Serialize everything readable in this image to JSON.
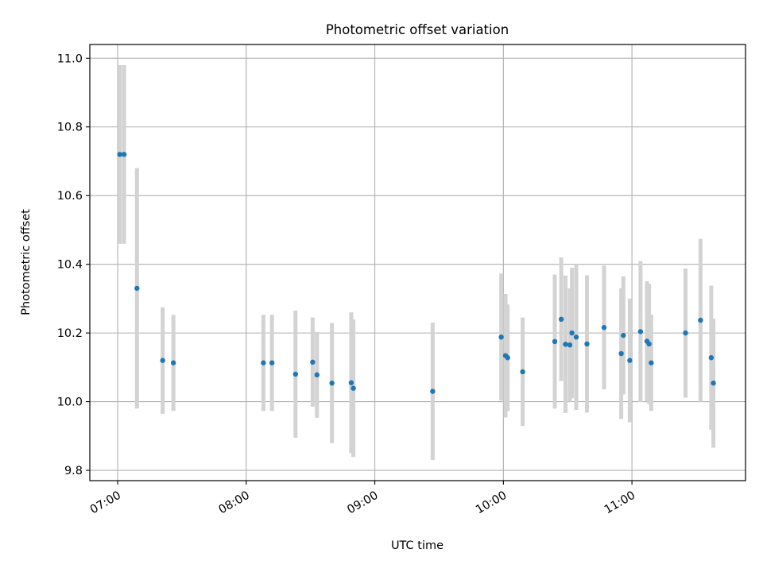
{
  "chart_data": {
    "type": "scatter",
    "title": "Photometric offset variation",
    "xlabel": "UTC time",
    "ylabel": "Photometric offset",
    "xlim": [
      "06:47",
      "11:53"
    ],
    "ylim": [
      9.77,
      11.04
    ],
    "grid": true,
    "x_ticks": [
      "07:00",
      "08:00",
      "09:00",
      "10:00",
      "11:00"
    ],
    "y_ticks": [
      "9.8",
      "10.0",
      "10.2",
      "10.4",
      "10.6",
      "10.8",
      "11.0"
    ],
    "colors": {
      "points": "#1f77b4",
      "errorbars": "#d3d3d3",
      "grid": "#b0b0b0"
    },
    "series": [
      {
        "points": [
          {
            "x": "07:01",
            "y": 10.72,
            "yerr": 0.26
          },
          {
            "x": "07:03",
            "y": 10.72,
            "yerr": 0.26
          },
          {
            "x": "07:09",
            "y": 10.33,
            "yerr": 0.35
          },
          {
            "x": "07:21",
            "y": 10.12,
            "yerr": 0.155
          },
          {
            "x": "07:26",
            "y": 10.113,
            "yerr": 0.14
          },
          {
            "x": "08:08",
            "y": 10.113,
            "yerr": 0.14
          },
          {
            "x": "08:12",
            "y": 10.113,
            "yerr": 0.14
          },
          {
            "x": "08:23",
            "y": 10.08,
            "yerr": 0.185
          },
          {
            "x": "08:31",
            "y": 10.115,
            "yerr": 0.13
          },
          {
            "x": "08:33",
            "y": 10.078,
            "yerr": 0.125
          },
          {
            "x": "08:40",
            "y": 10.054,
            "yerr": 0.175
          },
          {
            "x": "08:49",
            "y": 10.055,
            "yerr": 0.205
          },
          {
            "x": "08:50",
            "y": 10.039,
            "yerr": 0.2
          },
          {
            "x": "09:27",
            "y": 10.03,
            "yerr": 0.2
          },
          {
            "x": "09:59",
            "y": 10.188,
            "yerr": 0.185
          },
          {
            "x": "10:01",
            "y": 10.134,
            "yerr": 0.18
          },
          {
            "x": "10:02",
            "y": 10.128,
            "yerr": 0.155
          },
          {
            "x": "10:09",
            "y": 10.087,
            "yerr": 0.158
          },
          {
            "x": "10:24",
            "y": 10.175,
            "yerr": 0.195
          },
          {
            "x": "10:27",
            "y": 10.24,
            "yerr": 0.18
          },
          {
            "x": "10:29",
            "y": 10.167,
            "yerr": 0.2
          },
          {
            "x": "10:31",
            "y": 10.165,
            "yerr": 0.165
          },
          {
            "x": "10:32",
            "y": 10.2,
            "yerr": 0.19
          },
          {
            "x": "10:34",
            "y": 10.188,
            "yerr": 0.212
          },
          {
            "x": "10:39",
            "y": 10.168,
            "yerr": 0.2
          },
          {
            "x": "10:47",
            "y": 10.216,
            "yerr": 0.18
          },
          {
            "x": "10:55",
            "y": 10.14,
            "yerr": 0.19
          },
          {
            "x": "10:56",
            "y": 10.193,
            "yerr": 0.172
          },
          {
            "x": "10:59",
            "y": 10.12,
            "yerr": 0.18
          },
          {
            "x": "11:04",
            "y": 10.204,
            "yerr": 0.205
          },
          {
            "x": "11:07",
            "y": 10.176,
            "yerr": 0.175
          },
          {
            "x": "11:08",
            "y": 10.168,
            "yerr": 0.175
          },
          {
            "x": "11:09",
            "y": 10.113,
            "yerr": 0.14
          },
          {
            "x": "11:25",
            "y": 10.2,
            "yerr": 0.188
          },
          {
            "x": "11:32",
            "y": 10.237,
            "yerr": 0.237
          },
          {
            "x": "11:37",
            "y": 10.128,
            "yerr": 0.21
          },
          {
            "x": "11:38",
            "y": 10.054,
            "yerr": 0.188
          }
        ]
      }
    ]
  }
}
